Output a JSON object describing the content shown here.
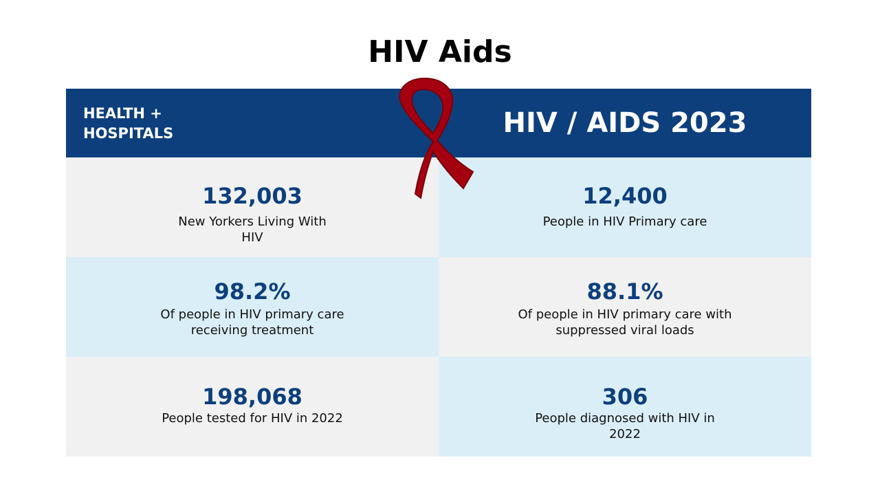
{
  "page": {
    "title": "HIV Aids"
  },
  "header": {
    "org_line1": "HEALTH +",
    "org_line2": "HOSPITALS",
    "year_title": "HIV / AIDS 2023"
  },
  "stats": [
    {
      "value": "132,003",
      "label": "New Yorkers Living With HIV"
    },
    {
      "value": "12,400",
      "label": "People in HIV Primary care"
    },
    {
      "value": "98.2%",
      "label": "Of people in HIV primary care receiving treatment"
    },
    {
      "value": "88.1%",
      "label": "Of people in HIV primary care with suppressed viral loads"
    },
    {
      "value": "198,068",
      "label": "People tested for HIV in 2022"
    },
    {
      "value": "306",
      "label": "People diagnosed with HIV in 2022"
    }
  ],
  "colors": {
    "navy": "#0d3f7d",
    "light_blue": "#daeef7",
    "light_grey": "#f1f1f1",
    "ribbon_red": "#a4000f"
  },
  "icons": {
    "ribbon": "awareness-ribbon-icon"
  }
}
